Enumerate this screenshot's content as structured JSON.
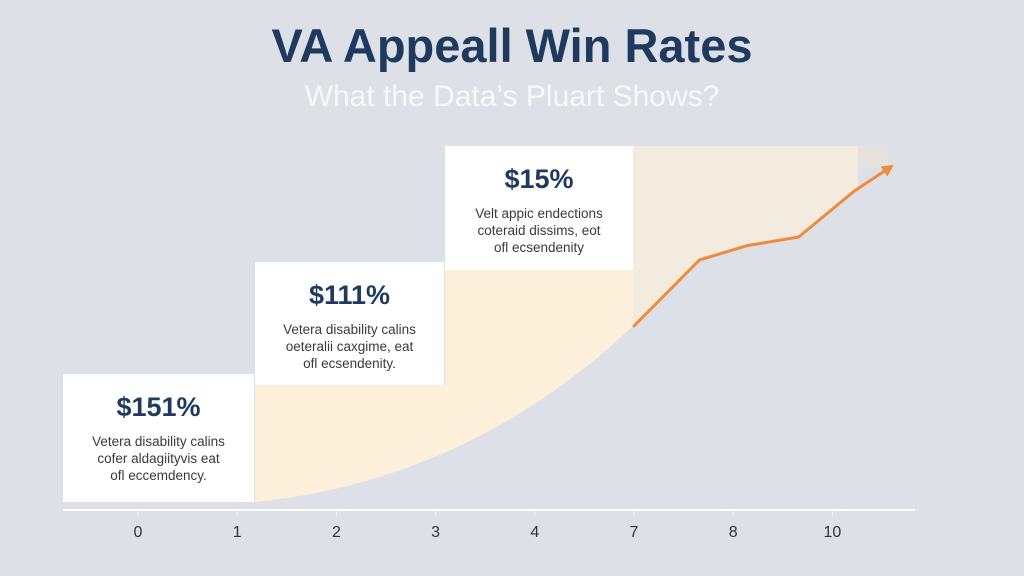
{
  "title": "VA Appeall Win Rates",
  "subtitle": "What the Data’s Pluart Shows?",
  "panels": [
    {
      "value": "$151%",
      "description": [
        "Vetera disability calins",
        "cofer aldagiityvis eat",
        "ofl eccemdency."
      ]
    },
    {
      "value": "$111%",
      "description": [
        "Vetera disability calins",
        "oeteralii caxgime, eat",
        "ofl ecsendenity."
      ]
    },
    {
      "value": "$15%",
      "description": [
        "Velt appic endections",
        "coteraid dissims, eot",
        "ofl ecsendenity"
      ]
    }
  ],
  "colors": {
    "title": "#1f3a5f",
    "line": "#f08a3c",
    "area": "#fdf0da",
    "background": "#dde1e7"
  },
  "chart_data": {
    "type": "line",
    "title": "VA Appeall Win Rates",
    "subtitle": "What the Data’s Pluart Shows?",
    "x_tick_labels": [
      "0",
      "1",
      "2",
      "3",
      "4",
      "7",
      "8",
      "10"
    ],
    "grid": false,
    "series": [
      {
        "x_position": [
          5,
          5.66,
          6.14,
          6.66,
          7.22,
          7.57
        ],
        "y": [
          0,
          23,
          28,
          31,
          47,
          55
        ],
        "arrow_end": true
      }
    ],
    "ylabel": "",
    "xlabel": ""
  }
}
